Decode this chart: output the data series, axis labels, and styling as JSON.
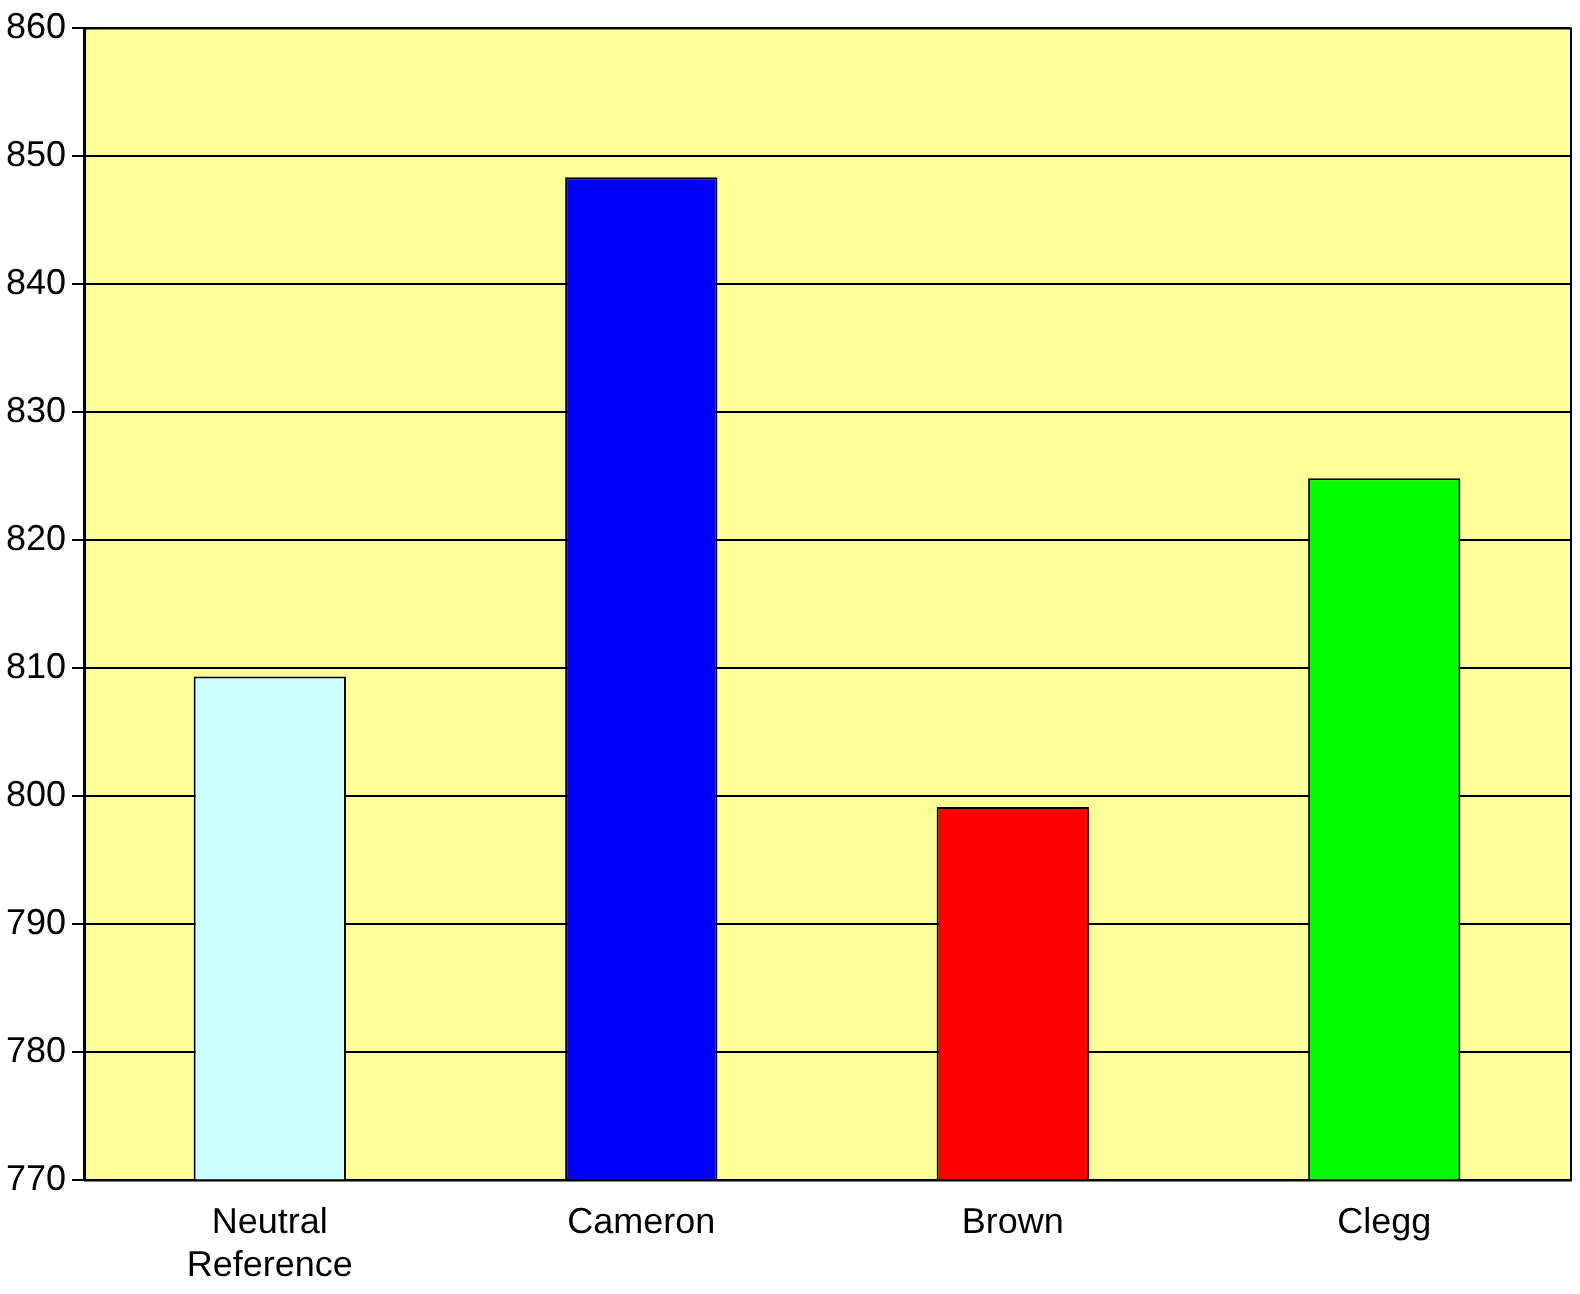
{
  "chart_data": {
    "type": "bar",
    "categories": [
      "Neutral Reference",
      "Cameron",
      "Brown",
      "Clegg"
    ],
    "values": [
      809.3,
      848.3,
      799.1,
      824.8
    ],
    "colors": [
      "#ccffff",
      "#0000ff",
      "#ff0000",
      "#00ff00"
    ],
    "ylim": [
      770,
      860
    ],
    "yticks": [
      770,
      780,
      790,
      800,
      810,
      820,
      830,
      840,
      850,
      860
    ],
    "grid": "y",
    "legend": false
  }
}
